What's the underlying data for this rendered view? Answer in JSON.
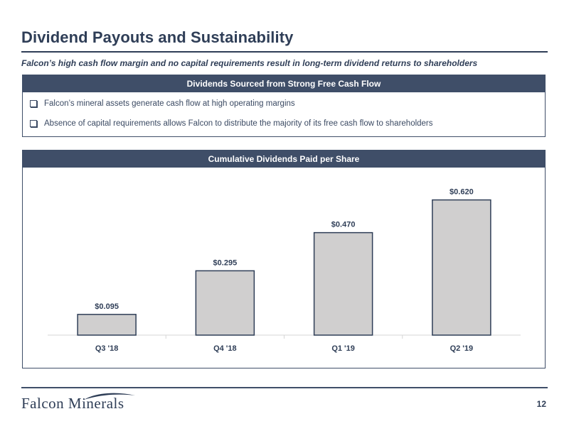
{
  "header": {
    "title": "Dividend Payouts and Sustainability",
    "subtitle": "Falcon’s high cash flow margin and no capital requirements result in long-term dividend returns to shareholders"
  },
  "info_panel": {
    "header": "Dividends Sourced from Strong Free Cash Flow",
    "bullets": [
      "Falcon’s mineral assets generate cash flow at high operating margins",
      "Absence of capital requirements allows Falcon to distribute the majority of its free cash flow to shareholders"
    ]
  },
  "chart_panel": {
    "header": "Cumulative Dividends Paid per Share"
  },
  "chart_data": {
    "type": "bar",
    "title": "Cumulative Dividends Paid per Share",
    "categories": [
      "Q3 '18",
      "Q4 '18",
      "Q1 '19",
      "Q2 '19"
    ],
    "values": [
      0.095,
      0.295,
      0.47,
      0.62
    ],
    "data_labels": [
      "$0.095",
      "$0.295",
      "$0.470",
      "$0.620"
    ],
    "xlabel": "",
    "ylabel": "",
    "ylim": [
      0,
      0.7
    ],
    "grid": false,
    "legend": "none",
    "bar_color": "#d0cfcf",
    "bar_outline_color": "#2f3e57"
  },
  "footer": {
    "logo_text": "Falcon Minerals",
    "page_number": "12"
  },
  "colors": {
    "primary": "#2f3e57",
    "panel_header": "#3f4e68"
  }
}
